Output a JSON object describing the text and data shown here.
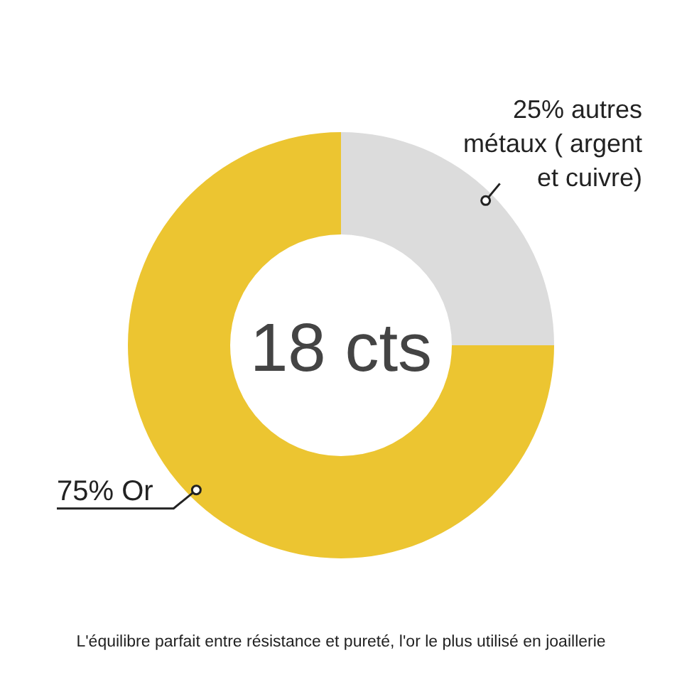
{
  "chart_data": {
    "type": "donut",
    "categories": [
      "25% autres métaux ( argent et cuivre)",
      "75% Or"
    ],
    "values": [
      25,
      75
    ],
    "colors": [
      "#dcdcdc",
      "#ecc531"
    ],
    "annotations": [
      "18 cts",
      "L'équilibre parfait entre résistance et pureté, l'or le plus utilisé en joaillerie"
    ]
  }
}
